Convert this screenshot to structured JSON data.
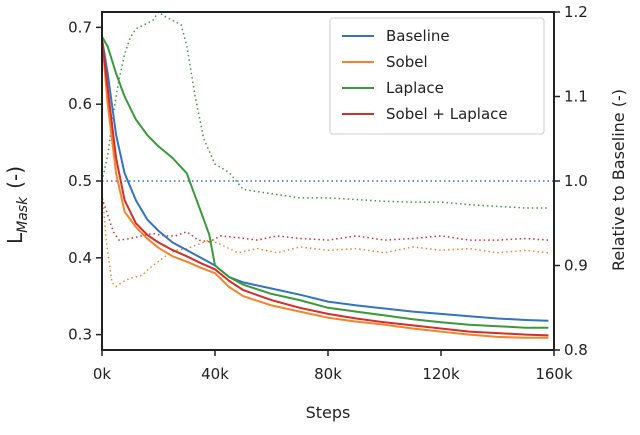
{
  "chart_data": {
    "type": "line",
    "x_axis": {
      "label": "Steps",
      "ticks": [
        0,
        40000,
        80000,
        120000,
        160000
      ],
      "tick_labels": [
        "0k",
        "40k",
        "80k",
        "120k",
        "160k"
      ],
      "range": [
        0,
        160000
      ]
    },
    "y_axis_left": {
      "label_main": "L",
      "label_sub": "Mask",
      "label_unit": "(-)",
      "ticks": [
        0.3,
        0.4,
        0.5,
        0.6,
        0.7
      ],
      "tick_labels": [
        "0.3",
        "0.4",
        "0.5",
        "0.6",
        "0.7"
      ],
      "range": [
        0.28,
        0.72
      ]
    },
    "y_axis_right": {
      "label": "Relative to Baseline (-)",
      "ticks": [
        0.8,
        0.9,
        1.0,
        1.1,
        1.2
      ],
      "tick_labels": [
        "0.8",
        "0.9",
        "1.0",
        "1.1",
        "1.2"
      ],
      "range": [
        0.8,
        1.2
      ]
    },
    "grid": false,
    "legend_position": "top-right",
    "series": [
      {
        "name": "Baseline",
        "color": "#3274c1",
        "x": [
          0,
          2000,
          5000,
          8000,
          12000,
          16000,
          20000,
          25000,
          30000,
          35000,
          40000,
          45000,
          50000,
          60000,
          70000,
          80000,
          90000,
          100000,
          110000,
          120000,
          130000,
          140000,
          150000,
          158000
        ],
        "y": [
          0.685,
          0.64,
          0.56,
          0.51,
          0.475,
          0.45,
          0.435,
          0.42,
          0.41,
          0.4,
          0.39,
          0.375,
          0.368,
          0.36,
          0.352,
          0.343,
          0.338,
          0.334,
          0.33,
          0.327,
          0.324,
          0.321,
          0.319,
          0.318
        ]
      },
      {
        "name": "Sobel",
        "color": "#f5832a",
        "x": [
          0,
          2000,
          5000,
          8000,
          12000,
          16000,
          20000,
          25000,
          30000,
          35000,
          40000,
          45000,
          50000,
          60000,
          70000,
          80000,
          90000,
          100000,
          110000,
          120000,
          130000,
          140000,
          150000,
          158000
        ],
        "y": [
          0.685,
          0.6,
          0.51,
          0.46,
          0.44,
          0.425,
          0.413,
          0.402,
          0.395,
          0.387,
          0.38,
          0.362,
          0.35,
          0.338,
          0.33,
          0.322,
          0.317,
          0.313,
          0.308,
          0.304,
          0.3,
          0.297,
          0.296,
          0.296
        ]
      },
      {
        "name": "Laplace",
        "color": "#3a9a3a",
        "x": [
          0,
          2000,
          5000,
          8000,
          12000,
          16000,
          20000,
          25000,
          30000,
          32000,
          35000,
          38000,
          40000,
          45000,
          50000,
          60000,
          70000,
          80000,
          90000,
          100000,
          110000,
          120000,
          130000,
          140000,
          150000,
          158000
        ],
        "y": [
          0.688,
          0.675,
          0.64,
          0.61,
          0.58,
          0.56,
          0.545,
          0.53,
          0.51,
          0.49,
          0.46,
          0.43,
          0.39,
          0.375,
          0.365,
          0.353,
          0.345,
          0.335,
          0.33,
          0.325,
          0.32,
          0.316,
          0.313,
          0.311,
          0.309,
          0.309
        ]
      },
      {
        "name": "Sobel + Laplace",
        "color": "#d62d28",
        "x": [
          0,
          2000,
          5000,
          8000,
          12000,
          16000,
          20000,
          25000,
          30000,
          35000,
          40000,
          45000,
          50000,
          60000,
          70000,
          80000,
          90000,
          100000,
          110000,
          120000,
          130000,
          140000,
          150000,
          158000
        ],
        "y": [
          0.685,
          0.62,
          0.53,
          0.475,
          0.445,
          0.43,
          0.42,
          0.41,
          0.402,
          0.393,
          0.385,
          0.37,
          0.358,
          0.345,
          0.335,
          0.327,
          0.321,
          0.316,
          0.312,
          0.308,
          0.304,
          0.302,
          0.3,
          0.299
        ]
      }
    ],
    "relative_series": [
      {
        "color": "#3274c1",
        "x": [
          0,
          160000
        ],
        "y": [
          1.0,
          1.0
        ]
      },
      {
        "color": "#f5832a",
        "x": [
          0,
          1500,
          3500,
          5000,
          7000,
          10000,
          14000,
          18000,
          22000,
          26000,
          30000,
          34000,
          38000,
          42000,
          48000,
          55000,
          62000,
          70000,
          80000,
          90000,
          100000,
          110000,
          120000,
          130000,
          140000,
          150000,
          158000
        ],
        "y": [
          0.99,
          0.93,
          0.88,
          0.875,
          0.88,
          0.885,
          0.888,
          0.9,
          0.91,
          0.918,
          0.92,
          0.925,
          0.93,
          0.925,
          0.915,
          0.92,
          0.915,
          0.922,
          0.918,
          0.92,
          0.915,
          0.922,
          0.918,
          0.92,
          0.915,
          0.918,
          0.915
        ]
      },
      {
        "color": "#3a9a3a",
        "x": [
          0,
          2000,
          4000,
          6000,
          8000,
          10000,
          12000,
          15000,
          18000,
          20000,
          22000,
          25000,
          28000,
          30000,
          33000,
          36000,
          40000,
          45000,
          50000,
          60000,
          70000,
          80000,
          90000,
          100000,
          110000,
          120000,
          130000,
          140000,
          150000,
          158000
        ],
        "y": [
          1.0,
          1.03,
          1.08,
          1.12,
          1.15,
          1.17,
          1.18,
          1.185,
          1.19,
          1.2,
          1.195,
          1.19,
          1.185,
          1.16,
          1.1,
          1.05,
          1.02,
          1.01,
          0.99,
          0.985,
          0.98,
          0.98,
          0.978,
          0.976,
          0.975,
          0.975,
          0.972,
          0.97,
          0.968,
          0.968
        ]
      },
      {
        "color": "#d62d28",
        "x": [
          0,
          2000,
          4000,
          6000,
          10000,
          14000,
          18000,
          22000,
          26000,
          30000,
          34000,
          38000,
          42000,
          48000,
          55000,
          62000,
          70000,
          80000,
          90000,
          100000,
          110000,
          120000,
          130000,
          140000,
          150000,
          158000
        ],
        "y": [
          0.98,
          0.96,
          0.94,
          0.93,
          0.932,
          0.935,
          0.938,
          0.935,
          0.935,
          0.94,
          0.93,
          0.928,
          0.935,
          0.933,
          0.93,
          0.935,
          0.932,
          0.93,
          0.935,
          0.93,
          0.932,
          0.935,
          0.93,
          0.93,
          0.932,
          0.93
        ]
      }
    ]
  }
}
